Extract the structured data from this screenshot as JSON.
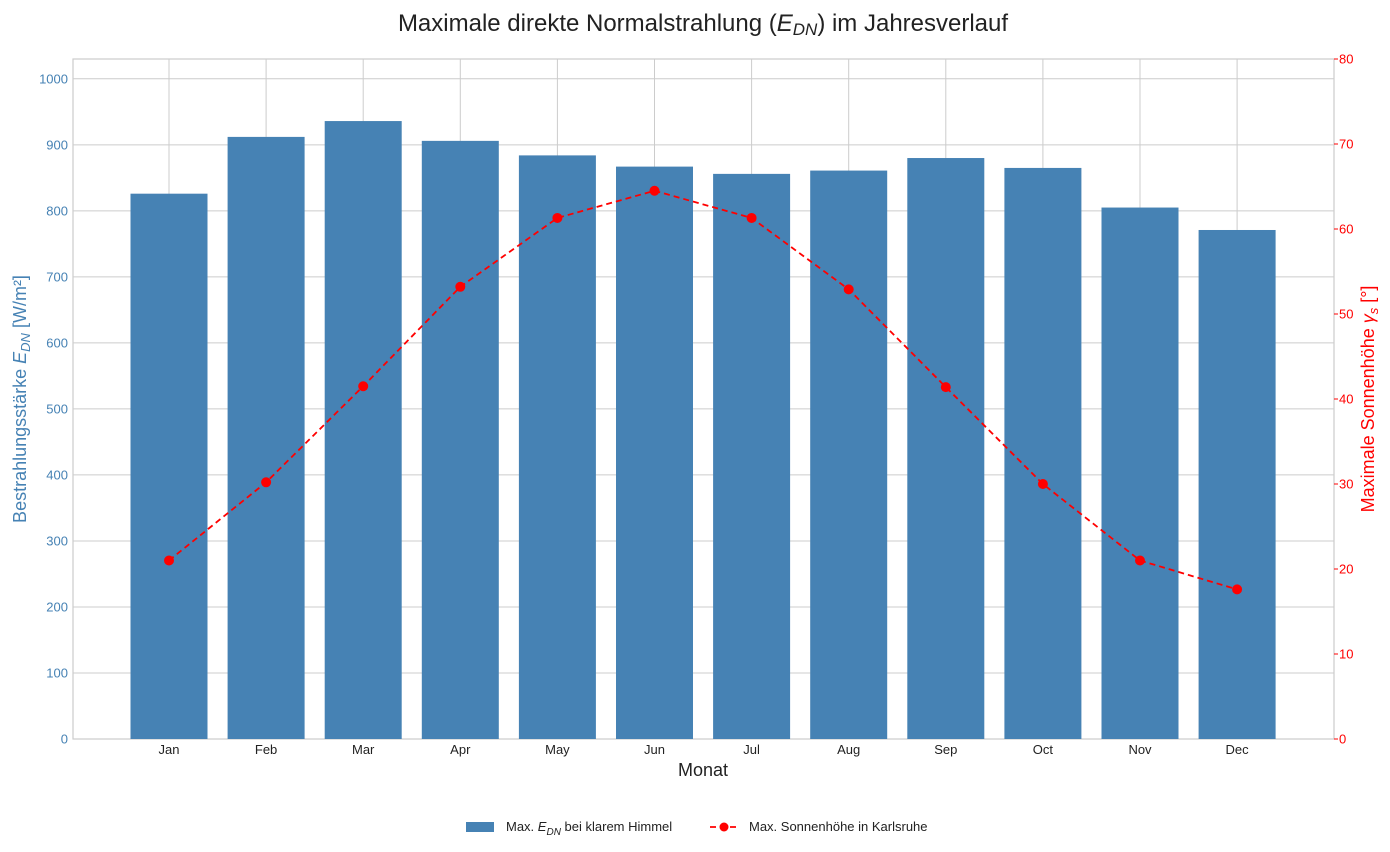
{
  "chart_data": {
    "type": "bar",
    "title_parts": [
      "Maximale direkte Normalstrahlung (",
      "E",
      "DN",
      ") im Jahresverlauf"
    ],
    "xlabel": "Monat",
    "ylabel_left_parts": [
      "Bestrahlungsstärke ",
      "E",
      "DN",
      " [W/m²]"
    ],
    "ylabel_right_parts": [
      "Maximale Sonnenhöhe ",
      "γ",
      "s",
      " [°]"
    ],
    "categories": [
      "Jan",
      "Feb",
      "Mar",
      "Apr",
      "May",
      "Jun",
      "Jul",
      "Aug",
      "Sep",
      "Oct",
      "Nov",
      "Dec"
    ],
    "series": [
      {
        "name_parts": [
          "Max. ",
          "E",
          "DN",
          " bei klarem Himmel"
        ],
        "type": "bar",
        "axis": "left",
        "color": "#4682b4",
        "values": [
          826,
          912,
          936,
          906,
          884,
          867,
          856,
          861,
          880,
          865,
          805,
          771
        ]
      },
      {
        "name": "Max. Sonnenhöhe in Karlsruhe",
        "type": "line",
        "axis": "right",
        "color": "#ff0000",
        "style": "dashed",
        "marker": "circle",
        "values": [
          21.0,
          30.2,
          41.5,
          53.2,
          61.3,
          64.5,
          61.3,
          52.9,
          41.4,
          30.0,
          21.0,
          17.6
        ]
      }
    ],
    "ylim_left": [
      0,
      1030
    ],
    "yticks_left": [
      0,
      100,
      200,
      300,
      400,
      500,
      600,
      700,
      800,
      900,
      1000
    ],
    "ylim_right": [
      0,
      80
    ],
    "yticks_right": [
      0,
      10,
      20,
      30,
      40,
      50,
      60,
      70,
      80
    ],
    "left_axis_color": "#4682b4",
    "right_axis_color": "#ff0000",
    "grid": true,
    "legend_position": "bottom-center"
  }
}
